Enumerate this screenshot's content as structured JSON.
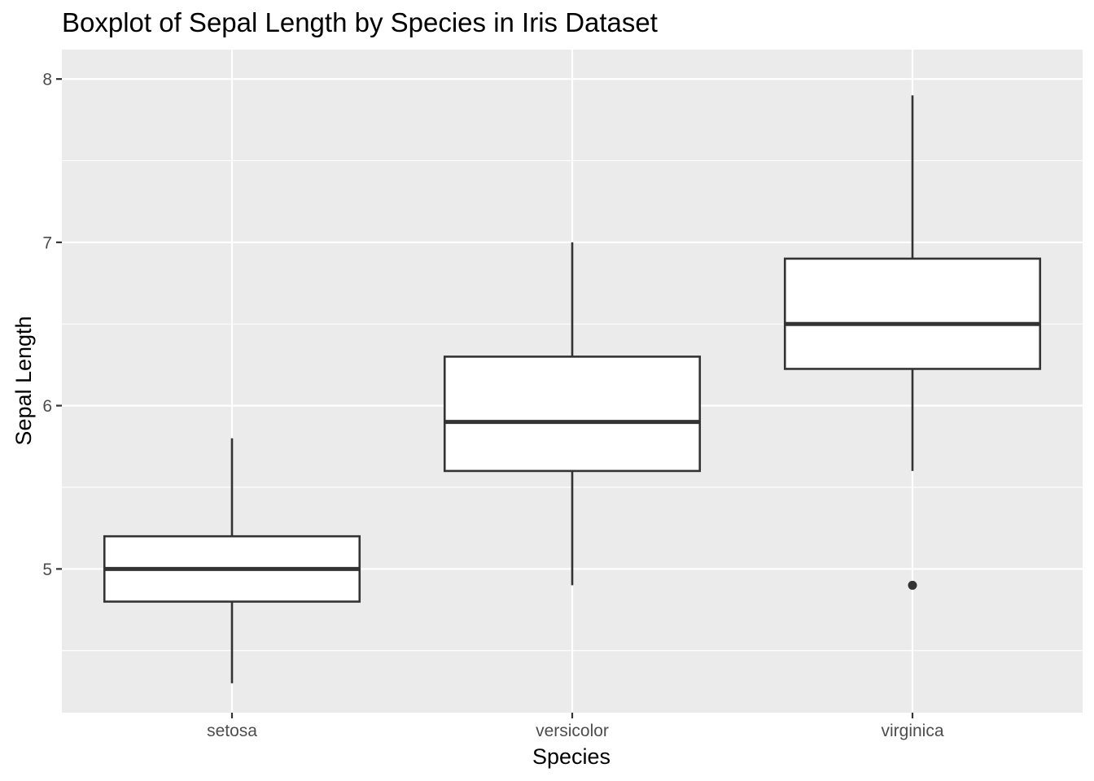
{
  "chart_data": {
    "type": "boxplot",
    "title": "Boxplot of Sepal Length by Species in Iris Dataset",
    "xlabel": "Species",
    "ylabel": "Sepal Length",
    "ylim": [
      4.12,
      8.18
    ],
    "yticks": [
      5,
      6,
      7,
      8
    ],
    "y_minor_ticks": [
      4.5,
      5.5,
      6.5,
      7.5
    ],
    "grid": true,
    "categories": [
      "setosa",
      "versicolor",
      "virginica"
    ],
    "boxes": [
      {
        "category": "setosa",
        "whisker_low": 4.3,
        "q1": 4.8,
        "median": 5.0,
        "q3": 5.2,
        "whisker_high": 5.8,
        "outliers": []
      },
      {
        "category": "versicolor",
        "whisker_low": 4.9,
        "q1": 5.6,
        "median": 5.9,
        "q3": 6.3,
        "whisker_high": 7.0,
        "outliers": []
      },
      {
        "category": "virginica",
        "whisker_low": 5.6,
        "q1": 6.225,
        "median": 6.5,
        "q3": 6.9,
        "whisker_high": 7.9,
        "outliers": [
          4.9
        ]
      }
    ],
    "colors": {
      "panel": "#ebebeb",
      "grid": "#ffffff",
      "box_fill": "#ffffff",
      "line": "#333333"
    }
  }
}
